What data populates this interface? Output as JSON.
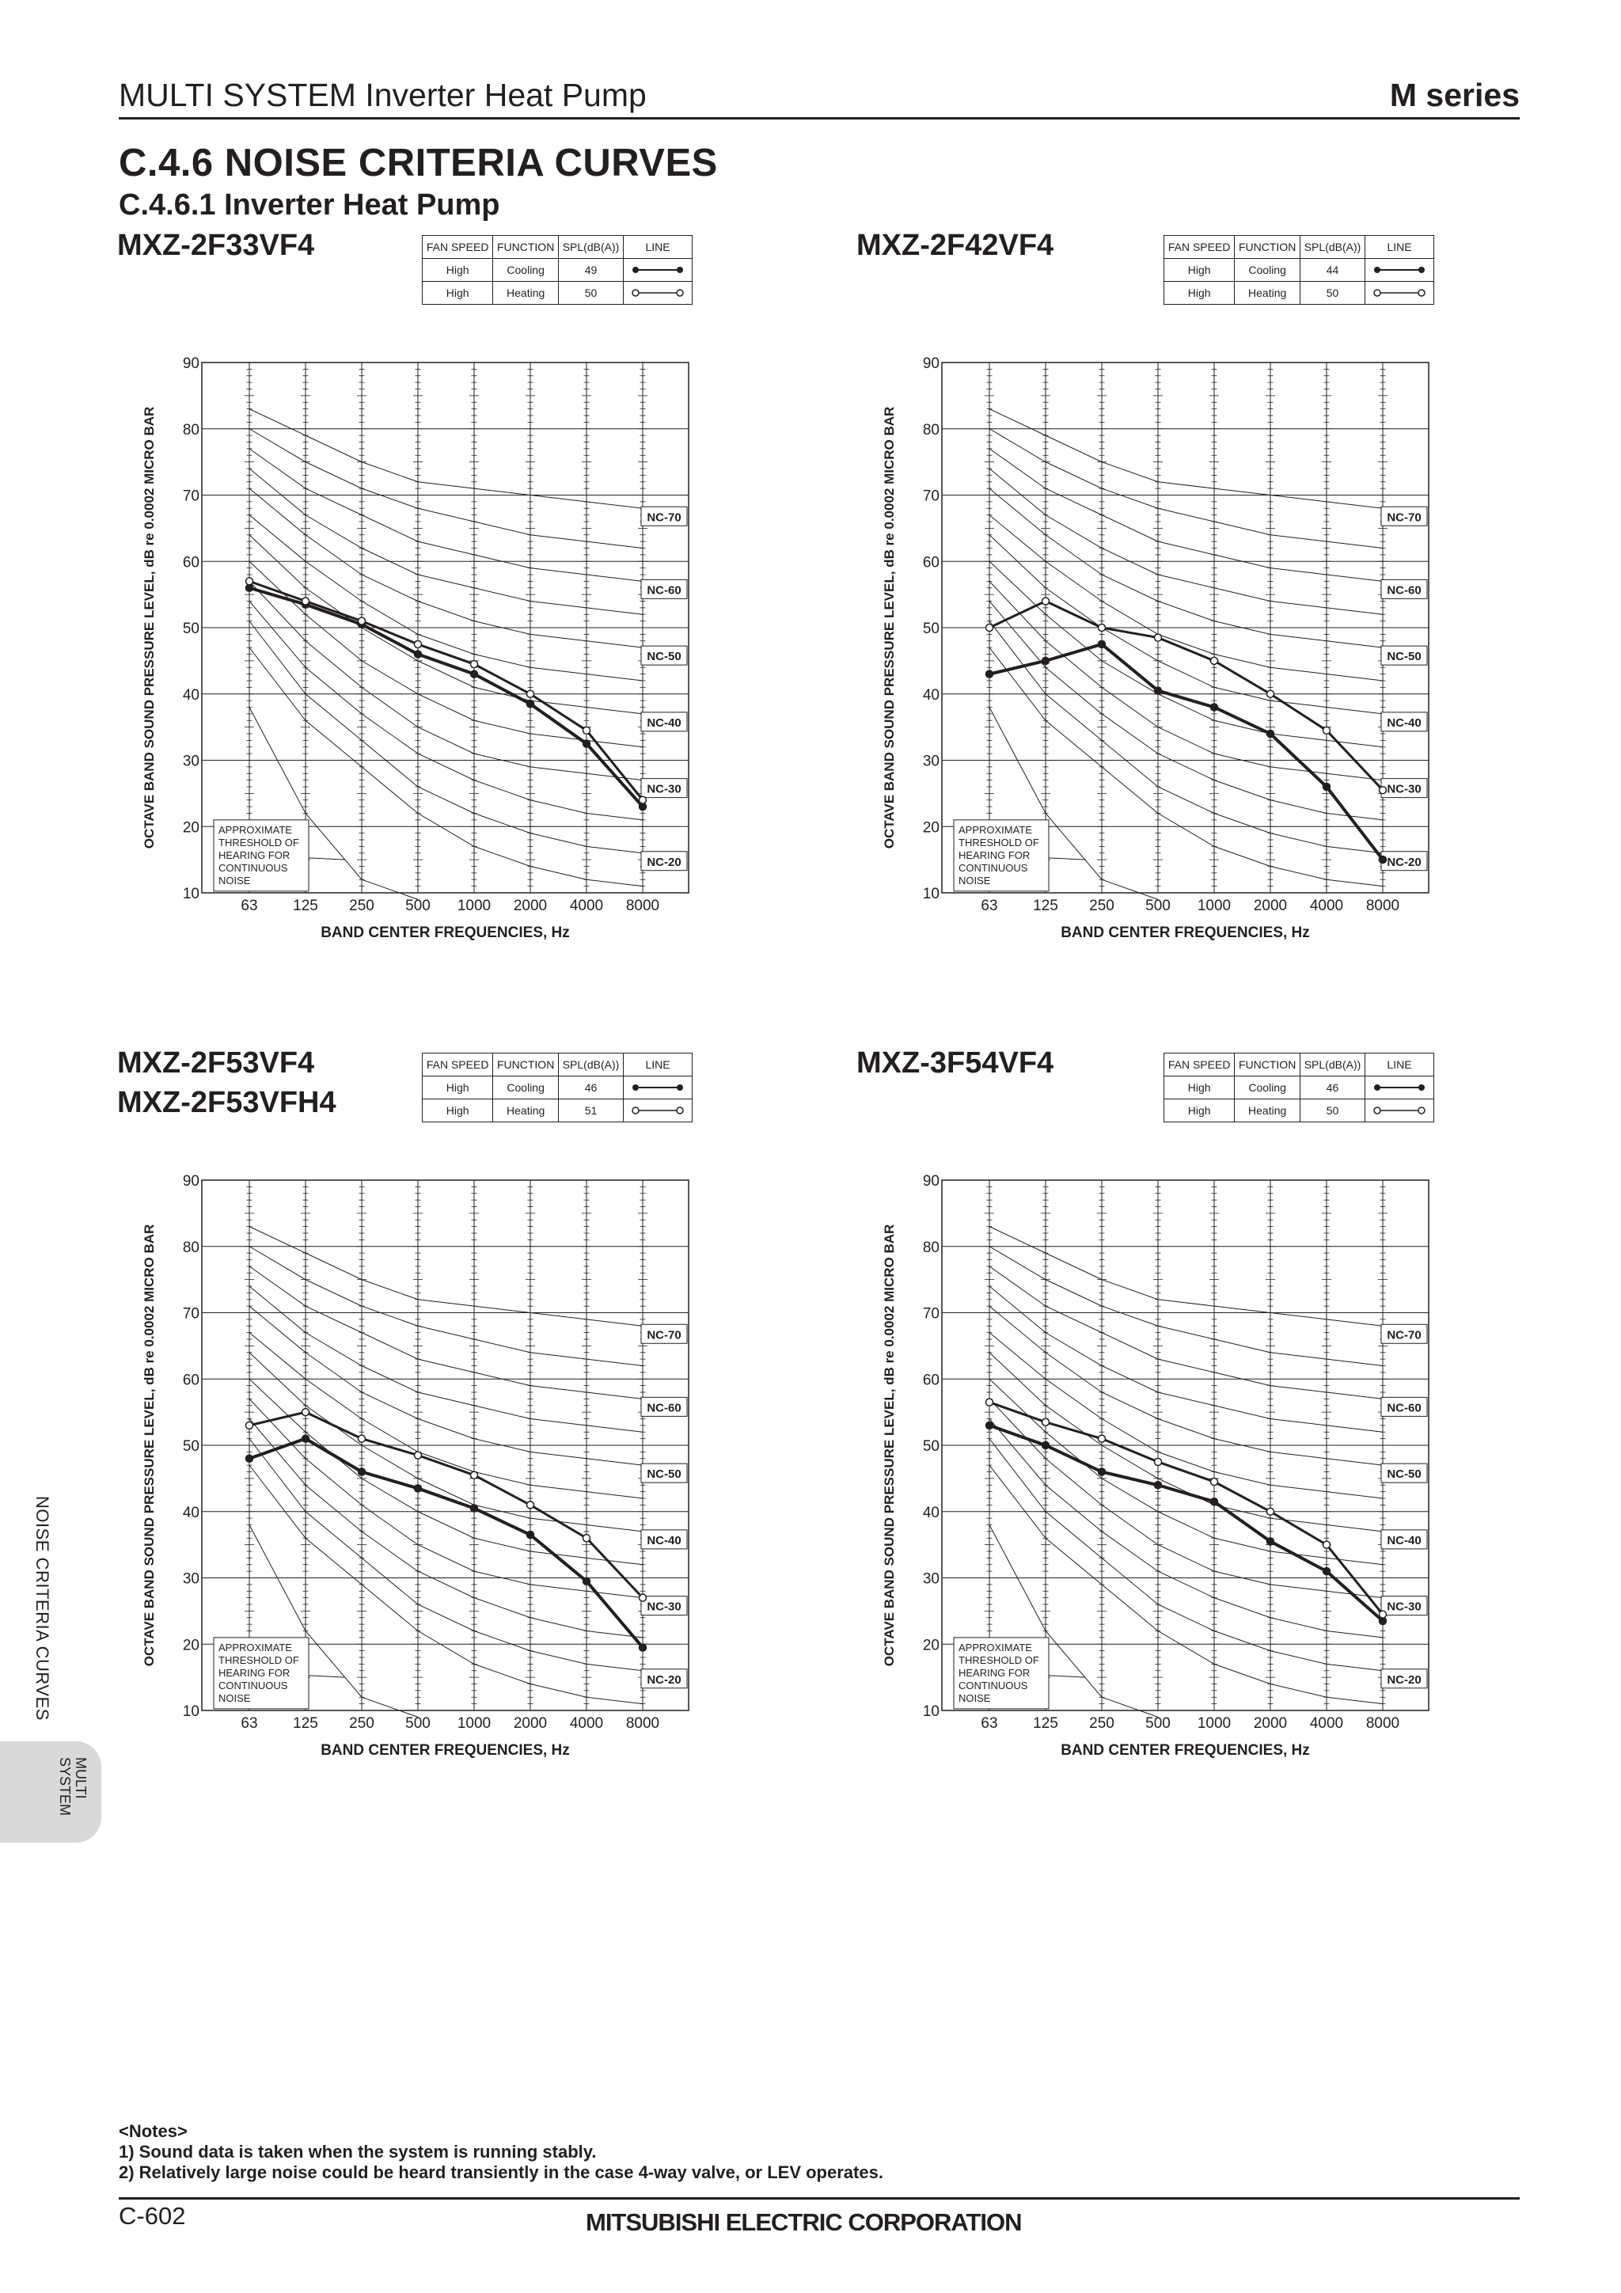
{
  "header": {
    "left": "MULTI SYSTEM Inverter Heat Pump",
    "right": "M series"
  },
  "section_title": "C.4.6  NOISE CRITERIA CURVES",
  "subsection_title": "C.4.6.1  Inverter Heat Pump",
  "legend_headers": [
    "FAN SPEED",
    "FUNCTION",
    "SPL(dB(A))",
    "LINE"
  ],
  "sidebar_label": "NOISE CRITERIA CURVES",
  "tab_label": [
    "MULTI",
    "SYSTEM"
  ],
  "notes": [
    "<Notes>",
    "1) Sound data is taken when the system is running stably.",
    "2) Relatively large noise could be heard transiently in the case 4-way valve, or LEV operates."
  ],
  "footer": {
    "page": "C-602",
    "company": "MITSUBISHI ELECTRIC CORPORATION"
  },
  "chart_data": [
    {
      "type": "line",
      "model_names": [
        "MXZ-2F33VF4"
      ],
      "legend_rows": [
        {
          "fan_speed": "High",
          "function": "Cooling",
          "spl": "49",
          "marker": "filled"
        },
        {
          "fan_speed": "High",
          "function": "Heating",
          "spl": "50",
          "marker": "open"
        }
      ],
      "x": [
        "63",
        "125",
        "250",
        "500",
        "1000",
        "2000",
        "4000",
        "8000"
      ],
      "xlabel": "BAND CENTER FREQUENCIES, Hz",
      "ylabel": "OCTAVE BAND SOUND PRESSURE LEVEL, dB re 0.0002 MICRO BAR",
      "ylim": [
        10,
        90
      ],
      "yticks": [
        10,
        20,
        30,
        40,
        50,
        60,
        70,
        80,
        90
      ],
      "nc_labels": [
        "NC-70",
        "NC-60",
        "NC-50",
        "NC-40",
        "NC-30",
        "NC-20"
      ],
      "threshold_label": [
        "APPROXIMATE",
        "THRESHOLD OF",
        "HEARING FOR",
        "CONTINUOUS",
        "NOISE"
      ],
      "series": [
        {
          "values": [
            56,
            53.5,
            50.5,
            46,
            43,
            38.5,
            32.5,
            23
          ]
        },
        {
          "values": [
            57,
            54,
            51,
            47.5,
            44.5,
            40,
            34.5,
            24
          ]
        }
      ]
    },
    {
      "type": "line",
      "model_names": [
        "MXZ-2F42VF4"
      ],
      "legend_rows": [
        {
          "fan_speed": "High",
          "function": "Cooling",
          "spl": "44",
          "marker": "filled"
        },
        {
          "fan_speed": "High",
          "function": "Heating",
          "spl": "50",
          "marker": "open"
        }
      ],
      "x": [
        "63",
        "125",
        "250",
        "500",
        "1000",
        "2000",
        "4000",
        "8000"
      ],
      "xlabel": "BAND CENTER FREQUENCIES, Hz",
      "ylabel": "OCTAVE BAND SOUND PRESSURE LEVEL, dB re 0.0002 MICRO BAR",
      "ylim": [
        10,
        90
      ],
      "yticks": [
        10,
        20,
        30,
        40,
        50,
        60,
        70,
        80,
        90
      ],
      "nc_labels": [
        "NC-70",
        "NC-60",
        "NC-50",
        "NC-40",
        "NC-30",
        "NC-20"
      ],
      "threshold_label": [
        "APPROXIMATE",
        "THRESHOLD OF",
        "HEARING FOR",
        "CONTINUOUS",
        "NOISE"
      ],
      "series": [
        {
          "values": [
            43,
            45,
            47.5,
            40.5,
            38,
            34,
            26,
            15
          ]
        },
        {
          "values": [
            50,
            54,
            50,
            48.5,
            45,
            40,
            34.5,
            25.5
          ]
        }
      ]
    },
    {
      "type": "line",
      "model_names": [
        "MXZ-2F53VF4",
        "MXZ-2F53VFH4"
      ],
      "legend_rows": [
        {
          "fan_speed": "High",
          "function": "Cooling",
          "spl": "46",
          "marker": "filled"
        },
        {
          "fan_speed": "High",
          "function": "Heating",
          "spl": "51",
          "marker": "open"
        }
      ],
      "x": [
        "63",
        "125",
        "250",
        "500",
        "1000",
        "2000",
        "4000",
        "8000"
      ],
      "xlabel": "BAND CENTER FREQUENCIES, Hz",
      "ylabel": "OCTAVE BAND SOUND PRESSURE LEVEL, dB re 0.0002 MICRO BAR",
      "ylim": [
        10,
        90
      ],
      "yticks": [
        10,
        20,
        30,
        40,
        50,
        60,
        70,
        80,
        90
      ],
      "nc_labels": [
        "NC-70",
        "NC-60",
        "NC-50",
        "NC-40",
        "NC-30",
        "NC-20"
      ],
      "threshold_label": [
        "APPROXIMATE",
        "THRESHOLD OF",
        "HEARING FOR",
        "CONTINUOUS",
        "NOISE"
      ],
      "series": [
        {
          "values": [
            48,
            51,
            46,
            43.5,
            40.5,
            36.5,
            29.5,
            19.5
          ]
        },
        {
          "values": [
            53,
            55,
            51,
            48.5,
            45.5,
            41,
            36,
            27
          ]
        }
      ]
    },
    {
      "type": "line",
      "model_names": [
        "MXZ-3F54VF4"
      ],
      "legend_rows": [
        {
          "fan_speed": "High",
          "function": "Cooling",
          "spl": "46",
          "marker": "filled"
        },
        {
          "fan_speed": "High",
          "function": "Heating",
          "spl": "50",
          "marker": "open"
        }
      ],
      "x": [
        "63",
        "125",
        "250",
        "500",
        "1000",
        "2000",
        "4000",
        "8000"
      ],
      "xlabel": "BAND CENTER FREQUENCIES, Hz",
      "ylabel": "OCTAVE BAND SOUND PRESSURE LEVEL, dB re 0.0002 MICRO BAR",
      "ylim": [
        10,
        90
      ],
      "yticks": [
        10,
        20,
        30,
        40,
        50,
        60,
        70,
        80,
        90
      ],
      "nc_labels": [
        "NC-70",
        "NC-60",
        "NC-50",
        "NC-40",
        "NC-30",
        "NC-20"
      ],
      "threshold_label": [
        "APPROXIMATE",
        "THRESHOLD OF",
        "HEARING FOR",
        "CONTINUOUS",
        "NOISE"
      ],
      "series": [
        {
          "values": [
            53,
            50,
            46,
            44,
            41.5,
            35.5,
            31,
            23.5
          ]
        },
        {
          "values": [
            56.5,
            53.5,
            51,
            47.5,
            44.5,
            40,
            35,
            24.5
          ]
        }
      ]
    }
  ]
}
